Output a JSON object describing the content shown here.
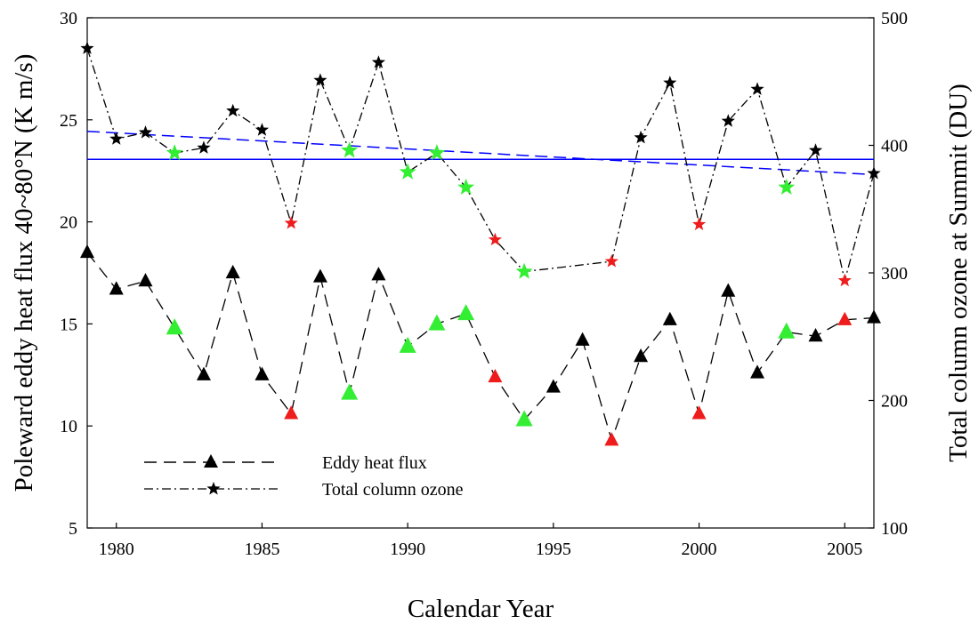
{
  "chart_data": {
    "type": "line",
    "title": "",
    "xlabel": "Calendar Year",
    "ylabel_left": "Poleward eddy heat flux 40~80°N (K m/s)",
    "ylabel_right": "Total column ozone at Summit (DU)",
    "xlim": [
      1979,
      2006
    ],
    "ylim_left": [
      5,
      30
    ],
    "ylim_right": [
      100,
      500
    ],
    "x_ticks": [
      1980,
      1985,
      1990,
      1995,
      2000,
      2005
    ],
    "y_left_ticks": [
      5,
      10,
      15,
      20,
      25,
      30
    ],
    "y_right_ticks": [
      100,
      200,
      300,
      400,
      500
    ],
    "grid": false,
    "legend_position": "bottom-left",
    "series": [
      {
        "name": "Eddy heat flux",
        "axis": "left",
        "marker": "triangle",
        "line_style": "dashed",
        "x": [
          1979,
          1980,
          1981,
          1982,
          1983,
          1984,
          1985,
          1986,
          1987,
          1988,
          1989,
          1990,
          1991,
          1992,
          1993,
          1994,
          1995,
          1996,
          1997,
          1998,
          1999,
          2000,
          2001,
          2002,
          2003,
          2004,
          2005,
          2006
        ],
        "values": [
          18.5,
          16.7,
          17.1,
          14.8,
          12.5,
          17.5,
          12.5,
          10.6,
          17.3,
          11.6,
          17.4,
          13.9,
          15.0,
          15.5,
          12.4,
          10.3,
          11.9,
          14.2,
          9.3,
          13.4,
          15.2,
          10.6,
          16.6,
          12.6,
          14.6,
          14.4,
          15.2,
          15.3
        ],
        "marker_colors": [
          "black",
          "black",
          "black",
          "green",
          "black",
          "black",
          "black",
          "red",
          "black",
          "green",
          "black",
          "green",
          "green",
          "green",
          "red",
          "green",
          "black",
          "black",
          "red",
          "black",
          "black",
          "red",
          "black",
          "black",
          "green",
          "black",
          "red",
          "black"
        ]
      },
      {
        "name": "Total column ozone",
        "axis": "right",
        "marker": "star",
        "line_style": "dash-dot",
        "x": [
          1979,
          1980,
          1981,
          1982,
          1983,
          1984,
          1985,
          1986,
          1987,
          1988,
          1989,
          1990,
          1991,
          1992,
          1993,
          1994,
          1997,
          1998,
          1999,
          2000,
          2001,
          2002,
          2003,
          2004,
          2005,
          2006
        ],
        "values": [
          476,
          405,
          410,
          394,
          398,
          427,
          412,
          339,
          451,
          396,
          465,
          379,
          394,
          367,
          326,
          301,
          309,
          406,
          449,
          338,
          419,
          444,
          367,
          396,
          294,
          378
        ],
        "marker_colors": [
          "black",
          "black",
          "black",
          "green",
          "black",
          "black",
          "black",
          "red",
          "black",
          "green",
          "black",
          "green",
          "green",
          "green",
          "red",
          "green",
          "red",
          "black",
          "black",
          "red",
          "black",
          "black",
          "green",
          "black",
          "red",
          "black"
        ]
      }
    ],
    "reference_lines": [
      {
        "kind": "mean",
        "axis": "right",
        "style": "solid",
        "color": "#0000ff",
        "y": 389
      },
      {
        "kind": "trend",
        "axis": "right",
        "style": "dashed",
        "color": "#0000ff",
        "x": [
          1979,
          2006
        ],
        "y": [
          411,
          377
        ]
      }
    ],
    "colors": {
      "black": "#000000",
      "green": "#33ee33",
      "red": "#ee1c1c",
      "blue": "#0000ff"
    }
  }
}
